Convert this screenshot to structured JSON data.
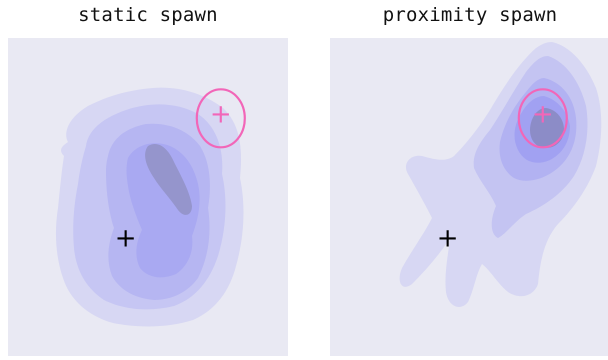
{
  "chart_data": [
    {
      "type": "heatmap",
      "title": "static spawn",
      "xlabel": "",
      "ylabel": "",
      "grid": false,
      "colors": {
        "background": "#e9e9f3",
        "density": "#7a7af2",
        "density_core": "#6f6f86",
        "target_marker": "#f266b8",
        "start_marker": "#000000"
      },
      "markers": [
        {
          "name": "start",
          "symbol": "+",
          "x": 0.42,
          "y": 0.37
        },
        {
          "name": "target",
          "symbol": "+",
          "x": 0.76,
          "y": 0.76,
          "circled": true
        }
      ]
    },
    {
      "type": "heatmap",
      "title": "proximity spawn",
      "xlabel": "",
      "ylabel": "",
      "grid": false,
      "colors": {
        "background": "#e9e9f3",
        "density": "#7a7af2",
        "density_core": "#6f6f86",
        "target_marker": "#f266b8",
        "start_marker": "#000000"
      },
      "markers": [
        {
          "name": "start",
          "symbol": "+",
          "x": 0.42,
          "y": 0.37
        },
        {
          "name": "target",
          "symbol": "+",
          "x": 0.76,
          "y": 0.76,
          "circled": true
        }
      ]
    }
  ]
}
